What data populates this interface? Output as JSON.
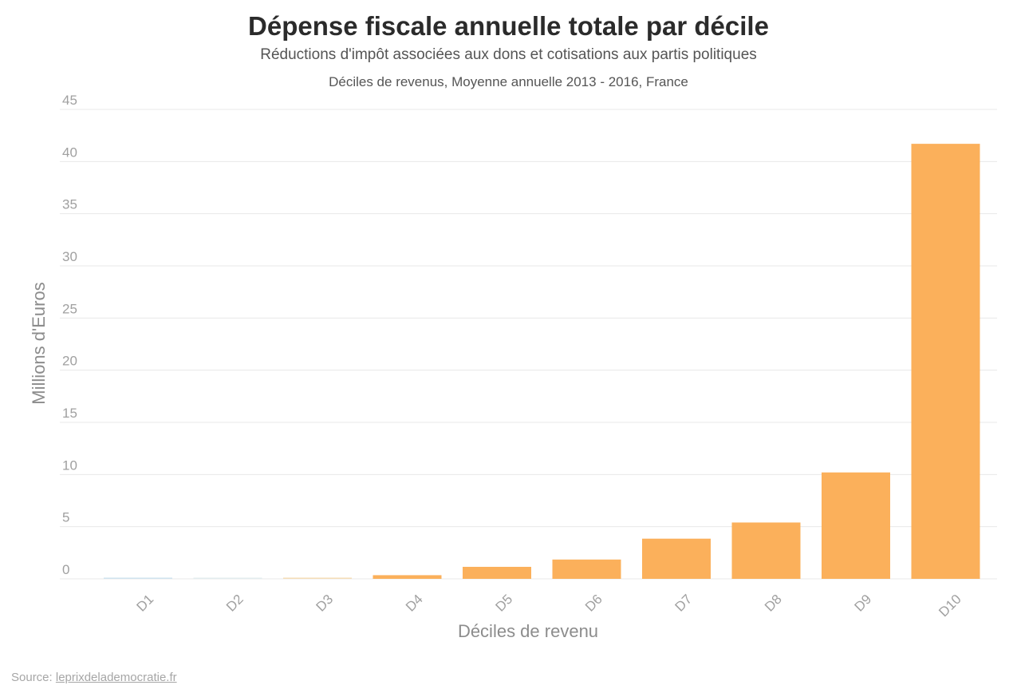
{
  "header": {
    "title": "Dépense fiscale annuelle totale par décile",
    "subtitle": "Réductions d'impôt associées aux dons et cotisations aux partis politiques",
    "note": "Déciles de revenus, Moyenne annuelle 2013 - 2016, France"
  },
  "footer": {
    "source_label": "Source:",
    "source_link": "leprixdelademocratie.fr"
  },
  "colors": {
    "bar": "#fbb05b",
    "grid": "#e8e8e8",
    "tick_text": "#a0a0a0",
    "axis_title": "#8c8c8c"
  },
  "chart_data": {
    "type": "bar",
    "categories": [
      "D1",
      "D2",
      "D3",
      "D4",
      "D5",
      "D6",
      "D7",
      "D8",
      "D9",
      "D10"
    ],
    "values": [
      0.03,
      0.02,
      0.08,
      0.35,
      1.15,
      1.85,
      3.85,
      5.4,
      10.2,
      41.7
    ],
    "bar_colors": [
      "#cfe3ee",
      "#e3ecee",
      "#f5dcb6",
      "#fbb05b",
      "#fbb05b",
      "#fbb05b",
      "#fbb05b",
      "#fbb05b",
      "#fbb05b",
      "#fbb05b"
    ],
    "xlabel": "Déciles de revenu",
    "ylabel": "Millions d'Euros",
    "ylim": [
      0,
      45
    ],
    "yticks": [
      0,
      5,
      10,
      15,
      20,
      25,
      30,
      35,
      40,
      45
    ],
    "grid": true,
    "legend": "none"
  }
}
